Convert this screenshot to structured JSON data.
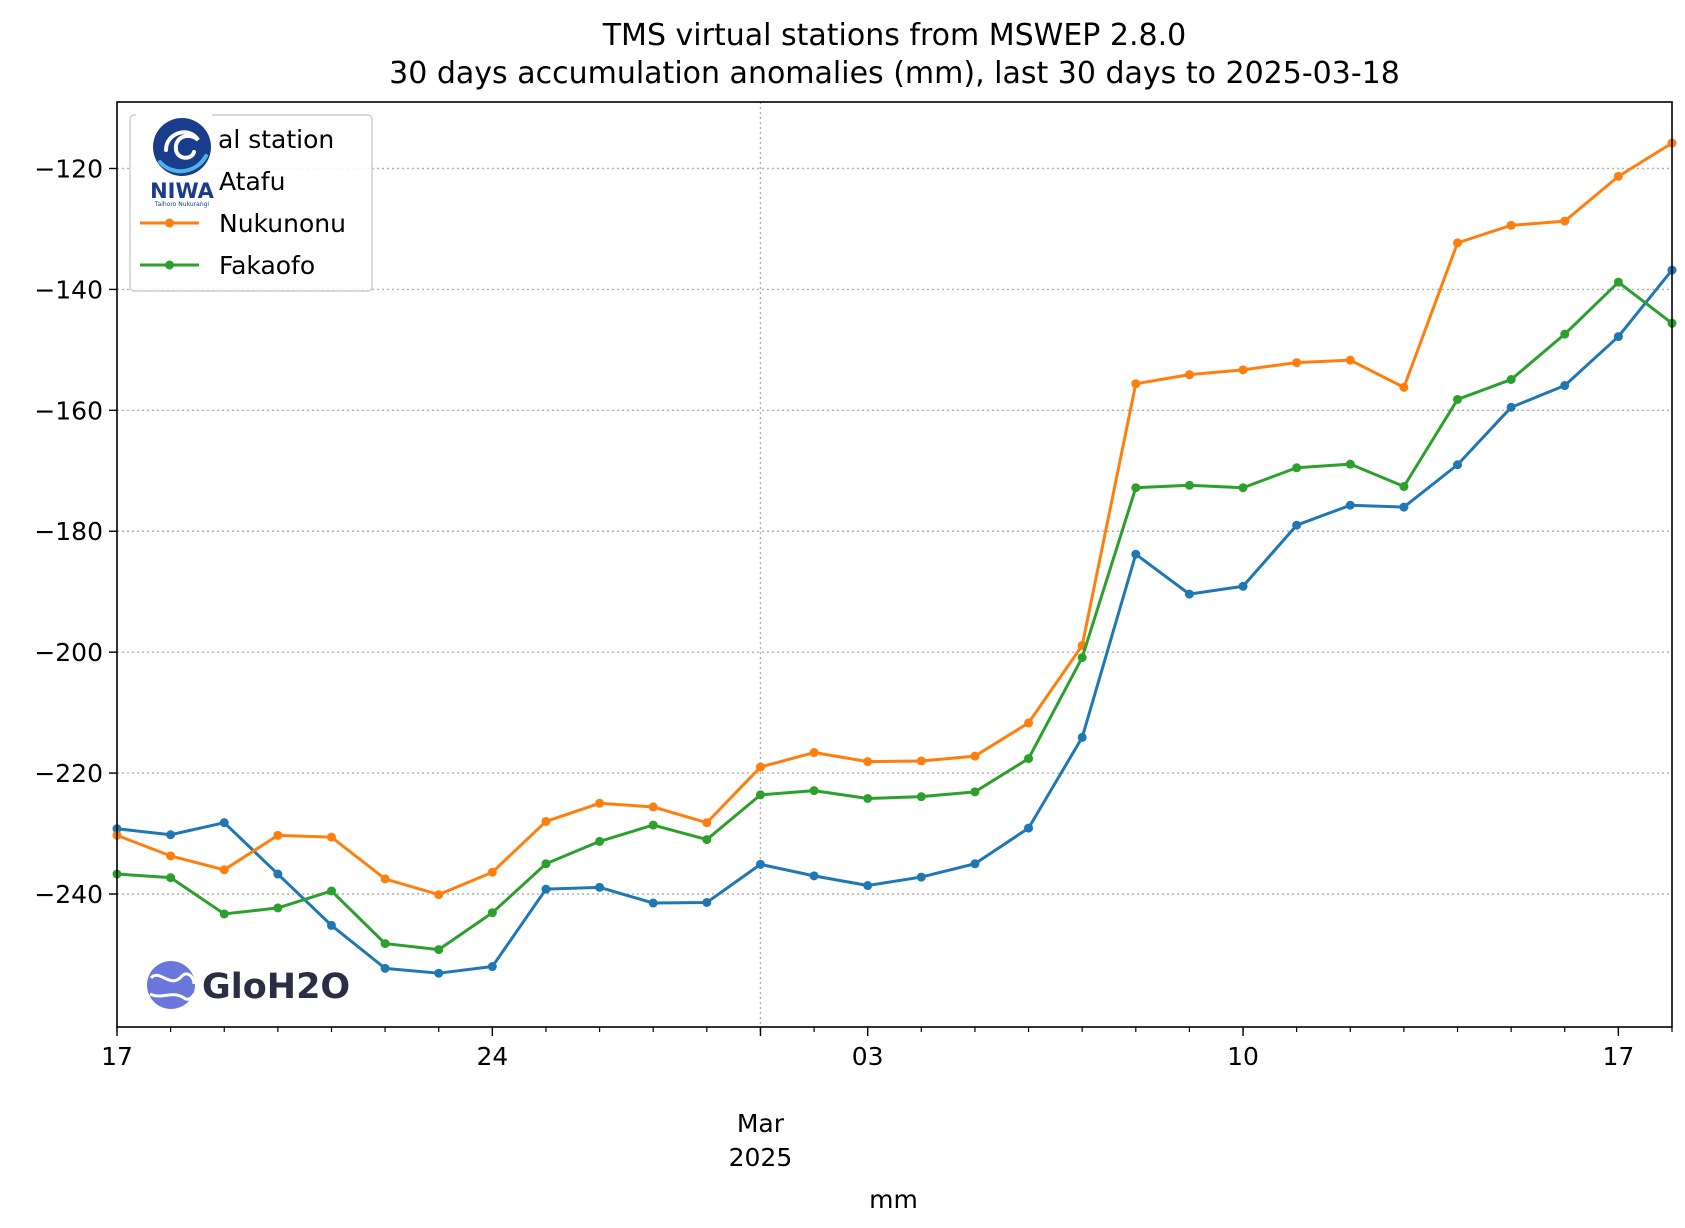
{
  "chart_data": {
    "type": "line",
    "title": [
      "TMS virtual stations from MSWEP 2.8.0",
      "30 days accumulation anomalies (mm), last 30 days to 2025-03-18"
    ],
    "xlabel": "mm",
    "ylabel": "",
    "x": [
      "2025-02-17",
      "2025-02-18",
      "2025-02-19",
      "2025-02-20",
      "2025-02-21",
      "2025-02-22",
      "2025-02-23",
      "2025-02-24",
      "2025-02-25",
      "2025-02-26",
      "2025-02-27",
      "2025-02-28",
      "2025-03-01",
      "2025-03-02",
      "2025-03-03",
      "2025-03-04",
      "2025-03-05",
      "2025-03-06",
      "2025-03-07",
      "2025-03-08",
      "2025-03-09",
      "2025-03-10",
      "2025-03-11",
      "2025-03-12",
      "2025-03-13",
      "2025-03-14",
      "2025-03-15",
      "2025-03-16",
      "2025-03-17",
      "2025-03-18"
    ],
    "xlim": [
      "2025-02-17",
      "2025-03-18"
    ],
    "ylim": [
      -262,
      -109
    ],
    "yticks": [
      -240,
      -220,
      -200,
      -180,
      -160,
      -140,
      -120
    ],
    "ytick_labels": [
      "−240",
      "−220",
      "−200",
      "−180",
      "−160",
      "−140",
      "−120"
    ],
    "xticks_major": [
      {
        "date": "2025-02-17",
        "label": "17"
      },
      {
        "date": "2025-02-24",
        "label": "24"
      },
      {
        "date": "2025-03-03",
        "label": "03"
      },
      {
        "date": "2025-03-10",
        "label": "10"
      },
      {
        "date": "2025-03-17",
        "label": "17"
      }
    ],
    "month_label": {
      "date": "2025-03-01",
      "lines": [
        "Mar",
        "2025"
      ]
    },
    "grid": "dotted, major ticks",
    "legend": {
      "position": "top-left",
      "title": "al station",
      "entries": [
        "Atafu",
        "Nukunonu",
        "Fakaofo"
      ]
    },
    "series": [
      {
        "name": "Atafu",
        "color": "#1f77b4",
        "values": [
          -229.2,
          -230.2,
          -228.2,
          -236.7,
          -245.2,
          -252.3,
          -253.1,
          -252.0,
          -239.2,
          -238.9,
          -241.5,
          -241.4,
          -235.1,
          -237.0,
          -238.6,
          -237.2,
          -235.0,
          -229.1,
          -214.1,
          -183.8,
          -190.4,
          -189.1,
          -179.0,
          -175.7,
          -176.0,
          -169.0,
          -159.5,
          -155.9,
          -147.8,
          -136.8
        ]
      },
      {
        "name": "Nukunonu",
        "color": "#ff7f0e",
        "values": [
          -230.3,
          -233.7,
          -236.0,
          -230.3,
          -230.6,
          -237.5,
          -240.1,
          -236.4,
          -228.0,
          -225.0,
          -225.6,
          -228.2,
          -219.0,
          -216.6,
          -218.1,
          -218.0,
          -217.2,
          -211.7,
          -198.9,
          -155.6,
          -154.1,
          -153.3,
          -152.1,
          -151.7,
          -156.2,
          -132.3,
          -129.4,
          -128.7,
          -121.3,
          -115.8
        ]
      },
      {
        "name": "Fakaofo",
        "color": "#2ca02c",
        "values": [
          -236.7,
          -237.3,
          -243.3,
          -242.3,
          -239.5,
          -248.2,
          -249.2,
          -243.1,
          -235.0,
          -231.3,
          -228.6,
          -231.0,
          -223.6,
          -222.9,
          -224.2,
          -223.9,
          -223.1,
          -217.6,
          -200.9,
          -172.8,
          -172.4,
          -172.8,
          -169.5,
          -168.9,
          -172.6,
          -158.2,
          -154.9,
          -147.4,
          -138.8,
          -145.6
        ]
      }
    ]
  },
  "logos": {
    "niwa": {
      "text": "NIWA",
      "subtext": "Taihoro Nukurangi",
      "color": "#1a3c8c"
    },
    "gloh2o": {
      "text": "GloH2O",
      "color": "#2b2d42",
      "icon_color": "#6a76d9"
    }
  }
}
